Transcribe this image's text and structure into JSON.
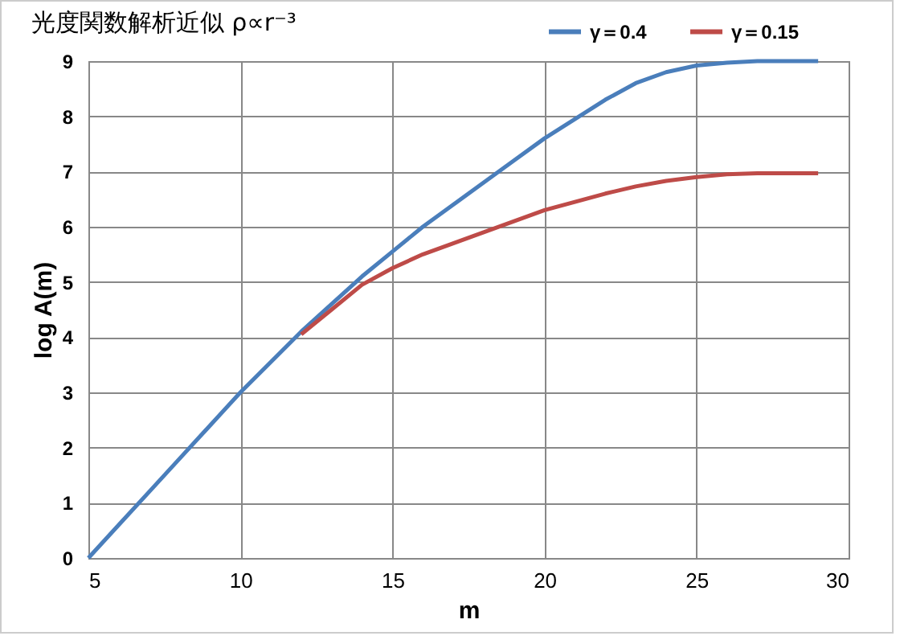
{
  "chart_data": {
    "type": "line",
    "title": "光度関数解析近似 ρ∝r⁻³",
    "xlabel": "m",
    "ylabel": "log A(m)",
    "x": [
      5,
      6,
      7,
      8,
      9,
      10,
      11,
      12,
      13,
      14,
      15,
      16,
      17,
      18,
      19,
      20,
      21,
      22,
      23,
      24,
      25,
      26,
      27,
      28,
      29
    ],
    "series": [
      {
        "name": "γ＝0.4",
        "color": "#4a7ebb",
        "values": [
          0,
          0.6,
          1.2,
          1.8,
          2.4,
          3.0,
          3.55,
          4.1,
          4.6,
          5.1,
          5.55,
          6.0,
          6.4,
          6.8,
          7.2,
          7.6,
          7.95,
          8.3,
          8.6,
          8.8,
          8.92,
          8.97,
          9,
          9,
          9
        ]
      },
      {
        "name": "γ＝0.15",
        "color": "#be4b48",
        "values": [
          null,
          null,
          null,
          null,
          null,
          null,
          null,
          4.05,
          4.5,
          4.95,
          5.25,
          5.5,
          5.7,
          5.9,
          6.1,
          6.3,
          6.45,
          6.6,
          6.73,
          6.83,
          6.9,
          6.95,
          6.97,
          6.97,
          6.97
        ]
      }
    ],
    "xlim": [
      5,
      30
    ],
    "xticks": [
      5,
      10,
      15,
      20,
      25,
      30
    ],
    "ylim": [
      0,
      9
    ],
    "yticks": [
      0,
      1,
      2,
      3,
      4,
      5,
      6,
      7,
      8,
      9
    ],
    "grid": true,
    "legend": "top right",
    "marker": "none",
    "line_style": "solid"
  }
}
